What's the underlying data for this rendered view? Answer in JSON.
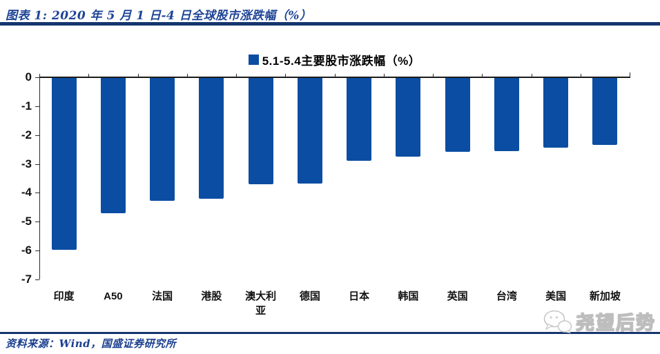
{
  "header": {
    "title": "图表 1: 2020 年 5 月 1 日-4 日全球股市涨跌幅（%）"
  },
  "legend": {
    "label": "5.1-5.4主要股市涨跌幅（%）"
  },
  "footer": {
    "source": "资料来源：Wind，国盛证券研究所",
    "watermark": "尧望后势"
  },
  "icons": {
    "watermark_icon": "chat-bubbles-icon",
    "legend_marker": "square-swatch"
  },
  "colors": {
    "bar": "#0b4da2",
    "rule_navy": "#15356e",
    "title_text": "#1e4496",
    "source_text": "#1c408f",
    "axis": "#2b2b2b",
    "watermark_outline": "#bdbdbd"
  },
  "chart_data": {
    "type": "bar",
    "title": "5.1-5.4主要股市涨跌幅（%）",
    "categories": [
      "印度",
      "A50",
      "法国",
      "港股",
      "澳大利亚",
      "德国",
      "日本",
      "韩国",
      "英国",
      "台湾",
      "美国",
      "新加坡"
    ],
    "values": [
      -5.97,
      -4.7,
      -4.27,
      -4.19,
      -3.68,
      -3.66,
      -2.88,
      -2.74,
      -2.57,
      -2.53,
      -2.43,
      -2.33
    ],
    "xlabel": "",
    "ylabel": "",
    "ylim": [
      -7,
      0
    ],
    "yticks": [
      0,
      -1,
      -2,
      -3,
      -4,
      -5,
      -6,
      -7
    ],
    "grid": false,
    "legend_position": "top-center",
    "bar_color": "#0b4da2"
  }
}
